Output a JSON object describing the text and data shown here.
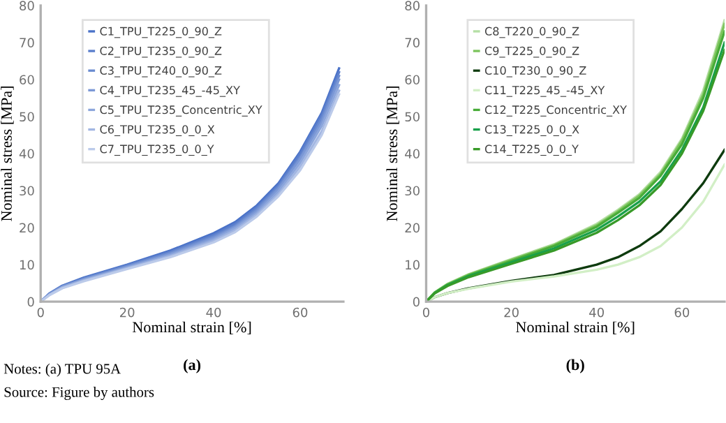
{
  "chart_data": [
    {
      "type": "line",
      "title": "(a)",
      "xlabel": "Nominal strain [%]",
      "ylabel": "Nominal stress [MPa]",
      "xlim": [
        0,
        70
      ],
      "ylim": [
        0,
        80
      ],
      "xticks": [
        0,
        20,
        40,
        60
      ],
      "yticks": [
        0,
        10,
        20,
        30,
        40,
        50,
        60,
        70,
        80
      ],
      "grid": false,
      "legend": "top left",
      "x": [
        0,
        2,
        5,
        10,
        20,
        30,
        40,
        45,
        50,
        55,
        60,
        65,
        69
      ],
      "series": [
        {
          "name": "C1_TPU_T225_0_90_Z",
          "color": "#4a72c8",
          "values": [
            0,
            2.2,
            4.3,
            6.5,
            10,
            13.8,
            18.5,
            21.5,
            26,
            32,
            40.5,
            51,
            63
          ]
        },
        {
          "name": "C2_TPU_T235_0_90_Z",
          "color": "#5a7ecc",
          "values": [
            0,
            2.1,
            4.2,
            6.3,
            9.8,
            13.5,
            18,
            21,
            25.5,
            31.5,
            40,
            50.5,
            62
          ]
        },
        {
          "name": "C3_TPU_T240_0_90_Z",
          "color": "#6a8bd0",
          "values": [
            0,
            2.1,
            4.1,
            6.2,
            9.6,
            13.2,
            17.6,
            20.5,
            25,
            31,
            39,
            49.5,
            61
          ]
        },
        {
          "name": "C4_TPU_T235_45_-45_XY",
          "color": "#7b98d6",
          "values": [
            0,
            2,
            4,
            6,
            9.4,
            12.9,
            17.2,
            20.2,
            24.5,
            30.5,
            38.5,
            48.5,
            60
          ]
        },
        {
          "name": "C5_TPU_T235_Concentric_XY",
          "color": "#8ca6dc",
          "values": [
            0,
            1.9,
            3.9,
            5.9,
            9.2,
            12.6,
            16.8,
            19.8,
            24,
            29.8,
            37.5,
            47.5,
            58.5
          ]
        },
        {
          "name": "C6_TPU_T235_0_0_X",
          "color": "#a2b6e2",
          "values": [
            0,
            1.8,
            3.7,
            5.7,
            9,
            12.3,
            16.4,
            19.3,
            23.5,
            29,
            36.5,
            46,
            57
          ]
        },
        {
          "name": "C7_TPU_T235_0_0_Y",
          "color": "#bccbea",
          "values": [
            0,
            1.7,
            3.6,
            5.5,
            8.8,
            12,
            16,
            18.8,
            23,
            28.5,
            35.5,
            45,
            56
          ]
        }
      ],
      "annotations": [
        "Notes: (a) TPU 95A",
        "Source: Figure by authors"
      ]
    },
    {
      "type": "line",
      "title": "(b)",
      "xlabel": "Nominal strain [%]",
      "ylabel": "Nominal stress [MPa]",
      "xlim": [
        0,
        70
      ],
      "ylim": [
        0,
        80
      ],
      "xticks": [
        0,
        20,
        40,
        60
      ],
      "yticks": [
        0,
        10,
        20,
        30,
        40,
        50,
        60,
        70,
        80
      ],
      "grid": false,
      "legend": "top left",
      "x": [
        0,
        2,
        5,
        10,
        20,
        30,
        40,
        45,
        50,
        55,
        60,
        65,
        70
      ],
      "series": [
        {
          "name": "C8_T220_0_90_Z",
          "color": "#b5dfa5",
          "values": [
            0,
            2.5,
            4.8,
            7.4,
            11.5,
            15.5,
            21,
            24.8,
            29,
            35,
            44,
            57,
            76
          ]
        },
        {
          "name": "C9_T225_0_90_Z",
          "color": "#7cc45c",
          "values": [
            0,
            2.5,
            4.7,
            7.3,
            11.3,
            15.3,
            20.6,
            24.4,
            28.6,
            34.5,
            43.5,
            56,
            75
          ]
        },
        {
          "name": "C10_T230_0_90_Z",
          "color": "#0e3b0e",
          "values": [
            0,
            1.2,
            2.3,
            3.6,
            5.6,
            7.2,
            10,
            12,
            15,
            19,
            25,
            32,
            41
          ]
        },
        {
          "name": "C11_T225_45_-45_XY",
          "color": "#d2efc6",
          "values": [
            0,
            1.2,
            2.3,
            3.5,
            5.4,
            6.8,
            8.6,
            10,
            12,
            15,
            20,
            27,
            37
          ]
        },
        {
          "name": "C12_T225_Concentric_XY",
          "color": "#48ac38",
          "values": [
            0,
            2.4,
            4.6,
            7.1,
            11,
            15,
            20.2,
            24,
            28,
            34,
            42.5,
            55,
            73
          ]
        },
        {
          "name": "C13_T225_0_0_X",
          "color": "#18a04a",
          "values": [
            0,
            2.3,
            4.4,
            6.9,
            10.6,
            14.4,
            19.4,
            23,
            27,
            32.5,
            41,
            52.5,
            70
          ]
        },
        {
          "name": "C14_T225_0_0_Y",
          "color": "#389a28",
          "values": [
            0,
            2.2,
            4.2,
            6.6,
            10.2,
            13.8,
            18.6,
            22,
            26,
            31.5,
            40,
            51.5,
            68
          ]
        }
      ]
    }
  ]
}
